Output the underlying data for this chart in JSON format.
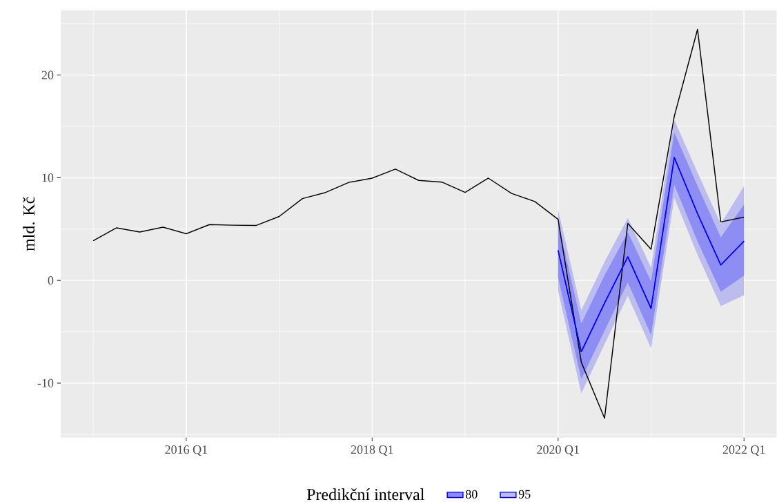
{
  "chart_data": {
    "type": "line",
    "ylabel": "mld. Kč",
    "legend_title": "Predikční interval",
    "categories": [
      null,
      null,
      null,
      null,
      "2016 Q1",
      null,
      null,
      null,
      null,
      null,
      null,
      null,
      "2018 Q1",
      null,
      null,
      null,
      null,
      null,
      null,
      null,
      "2020 Q1",
      null,
      null,
      null,
      null,
      null,
      null,
      null,
      "2022 Q1"
    ],
    "ylim": [
      -15.3,
      26.3
    ],
    "yticks": [
      -10,
      0,
      10,
      20
    ],
    "grid": true,
    "legend": "bottom",
    "series": [
      {
        "name": "95",
        "color": "#0000ff",
        "values": [
          null,
          null,
          null,
          null,
          null,
          null,
          null,
          null,
          null,
          null,
          null,
          null,
          null,
          null,
          null,
          null,
          null,
          null,
          null,
          null,
          2.93,
          -6.94,
          -2.2,
          2.3,
          -2.72,
          11.97,
          6.5,
          1.5,
          3.82
        ],
        "lower": [
          null,
          null,
          null,
          null,
          null,
          null,
          null,
          null,
          null,
          null,
          null,
          null,
          null,
          null,
          null,
          null,
          null,
          null,
          null,
          null,
          -1.0,
          -11.0,
          -6.2,
          -1.5,
          -6.6,
          8.05,
          2.5,
          -2.5,
          -1.43
        ],
        "upper": [
          null,
          null,
          null,
          null,
          null,
          null,
          null,
          null,
          null,
          null,
          null,
          null,
          null,
          null,
          null,
          null,
          null,
          null,
          null,
          null,
          6.9,
          -2.9,
          1.8,
          6.1,
          1.25,
          15.65,
          10.5,
          5.5,
          9.18
        ]
      },
      {
        "name": "80",
        "color": "#0000ff",
        "values": [
          null,
          null,
          null,
          null,
          null,
          null,
          null,
          null,
          null,
          null,
          null,
          null,
          null,
          null,
          null,
          null,
          null,
          null,
          null,
          null,
          2.93,
          -6.94,
          -2.2,
          2.3,
          -2.72,
          11.97,
          6.5,
          1.5,
          3.82
        ],
        "lower": [
          null,
          null,
          null,
          null,
          null,
          null,
          null,
          null,
          null,
          null,
          null,
          null,
          null,
          null,
          null,
          null,
          null,
          null,
          null,
          null,
          0.3,
          -9.6,
          -4.9,
          -0.2,
          -5.3,
          9.3,
          3.8,
          -1.1,
          0.47
        ],
        "upper": [
          null,
          null,
          null,
          null,
          null,
          null,
          null,
          null,
          null,
          null,
          null,
          null,
          null,
          null,
          null,
          null,
          null,
          null,
          null,
          null,
          5.6,
          -4.2,
          0.5,
          4.7,
          -0.1,
          14.4,
          9.2,
          4.2,
          7.39
        ]
      },
      {
        "color": "#000000",
        "values": [
          3.87,
          5.12,
          4.72,
          5.19,
          4.55,
          5.44,
          5.38,
          5.35,
          6.23,
          7.97,
          8.57,
          9.55,
          9.96,
          10.84,
          9.74,
          9.58,
          8.57,
          9.96,
          8.47,
          7.68,
          5.95,
          -7.97,
          -13.42,
          5.56,
          3.04,
          15.99,
          24.45,
          5.7,
          6.16
        ]
      }
    ]
  }
}
